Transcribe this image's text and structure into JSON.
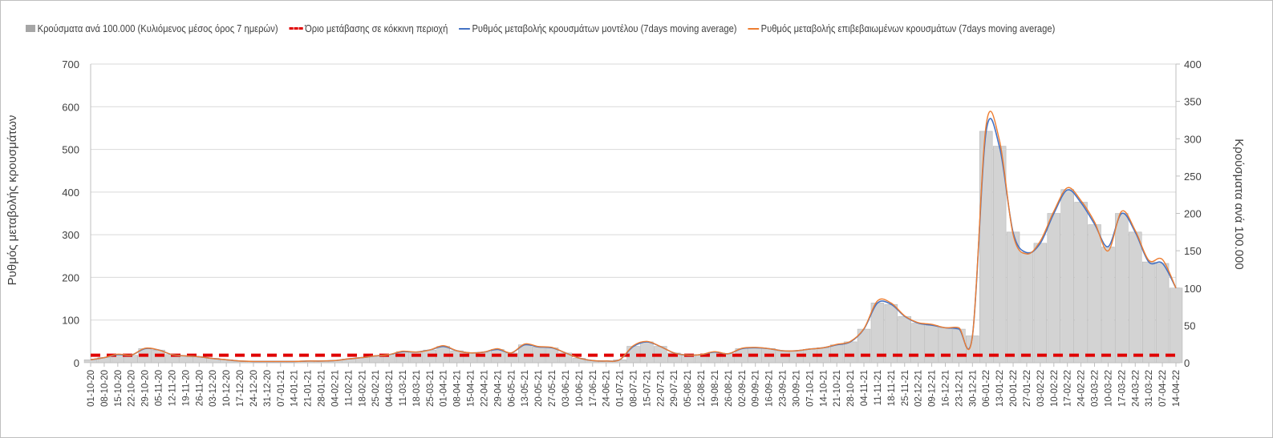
{
  "chart_data": {
    "type": "bar+line",
    "legend": [
      {
        "label": "Κρούσματα ανά 100.000 (Κυλιόμενος μέσος όρος 7 ημερών)",
        "color": "#a6a6a6"
      },
      {
        "label": "Όριο μετάβασης σε κόκκινη περιοχή",
        "color": "#e00000"
      },
      {
        "label": "Ρυθμός μεταβολής κρουσμάτων μοντέλου (7days moving average)",
        "color": "#4472c4"
      },
      {
        "label": "Ρυθμός μεταβολής επιβεβαιωμένων κρουσμάτων (7days moving average)",
        "color": "#ed7d31"
      }
    ],
    "legend_position": "top",
    "ylabel_left": "Ρυθμός μεταβολής κρουσμάτων",
    "ylabel_right": "Κρούσματα ανά 100.000",
    "ylim_left": [
      0,
      700
    ],
    "yticks_left": [
      0,
      100,
      200,
      300,
      400,
      500,
      600,
      700
    ],
    "ylim_right": [
      0,
      400
    ],
    "yticks_right": [
      0,
      50,
      100,
      150,
      200,
      250,
      300,
      350,
      400
    ],
    "threshold_right": 10,
    "grid": true,
    "categories": [
      "01-10-20",
      "08-10-20",
      "15-10-20",
      "22-10-20",
      "29-10-20",
      "05-11-20",
      "12-11-20",
      "19-11-20",
      "26-11-20",
      "03-12-20",
      "10-12-20",
      "17-12-20",
      "24-12-20",
      "31-12-20",
      "07-01-21",
      "14-01-21",
      "21-01-21",
      "28-01-21",
      "04-02-21",
      "11-02-21",
      "18-02-21",
      "25-02-21",
      "04-03-21",
      "11-03-21",
      "18-03-21",
      "25-03-21",
      "01-04-21",
      "08-04-21",
      "15-04-21",
      "22-04-21",
      "29-04-21",
      "06-05-21",
      "13-05-21",
      "20-05-21",
      "27-05-21",
      "03-06-21",
      "10-06-21",
      "17-06-21",
      "24-06-21",
      "01-07-21",
      "08-07-21",
      "15-07-21",
      "22-07-21",
      "29-07-21",
      "05-08-21",
      "12-08-21",
      "19-08-21",
      "26-08-21",
      "02-09-21",
      "09-09-21",
      "16-09-21",
      "23-09-21",
      "30-09-21",
      "07-10-21",
      "14-10-21",
      "21-10-21",
      "28-10-21",
      "04-11-21",
      "11-11-21",
      "18-11-21",
      "25-11-21",
      "02-12-21",
      "09-12-21",
      "16-12-21",
      "23-12-21",
      "30-12-21",
      "06-01-22",
      "13-01-22",
      "20-01-22",
      "27-01-22",
      "03-02-22",
      "10-02-22",
      "17-02-22",
      "24-02-22",
      "03-03-22",
      "10-03-22",
      "17-03-22",
      "24-03-22",
      "31-03-22",
      "07-04-22",
      "14-04-22"
    ],
    "cases_per_100k": [
      4,
      7,
      11,
      10,
      19,
      17,
      11,
      9,
      8,
      6,
      4,
      2,
      1.5,
      1.5,
      1.5,
      1.5,
      2,
      2,
      3,
      5,
      7,
      9,
      11,
      15,
      14,
      17,
      22,
      16,
      13,
      14,
      18,
      13,
      24,
      21,
      20,
      13,
      6,
      3,
      2,
      4,
      22,
      28,
      22,
      13,
      10,
      11,
      14,
      12,
      19,
      20,
      19,
      16,
      16,
      18,
      20,
      24,
      28,
      45,
      80,
      78,
      62,
      53,
      50,
      47,
      45,
      36,
      310,
      290,
      175,
      148,
      160,
      200,
      232,
      215,
      185,
      155,
      200,
      175,
      135,
      133,
      100
    ],
    "model_rate": [
      7,
      12,
      19,
      18,
      33,
      30,
      19,
      16,
      14,
      10,
      7,
      4,
      3,
      3,
      3,
      3,
      4,
      4,
      5,
      9,
      12,
      16,
      19,
      26,
      25,
      30,
      38,
      28,
      23,
      25,
      31,
      23,
      42,
      37,
      35,
      23,
      11,
      5,
      4,
      7,
      38,
      49,
      38,
      23,
      18,
      19,
      25,
      21,
      33,
      35,
      33,
      28,
      28,
      32,
      35,
      42,
      49,
      79,
      140,
      137,
      109,
      93,
      88,
      82,
      79,
      63,
      540,
      505,
      305,
      258,
      280,
      350,
      405,
      375,
      325,
      272,
      350,
      306,
      236,
      233,
      175
    ],
    "confirmed_rate": [
      7,
      12,
      20,
      18,
      34,
      30,
      19,
      16,
      14,
      10,
      7,
      4,
      3,
      3,
      3,
      3,
      4,
      4,
      5,
      9,
      12,
      16,
      19,
      27,
      25,
      30,
      40,
      28,
      23,
      25,
      33,
      23,
      44,
      38,
      36,
      23,
      11,
      5,
      4,
      7,
      40,
      50,
      38,
      23,
      18,
      19,
      26,
      21,
      34,
      36,
      33,
      28,
      28,
      32,
      35,
      43,
      50,
      80,
      145,
      140,
      110,
      94,
      90,
      82,
      82,
      62,
      555,
      520,
      300,
      255,
      285,
      355,
      410,
      380,
      330,
      262,
      355,
      310,
      240,
      242,
      175
    ]
  }
}
